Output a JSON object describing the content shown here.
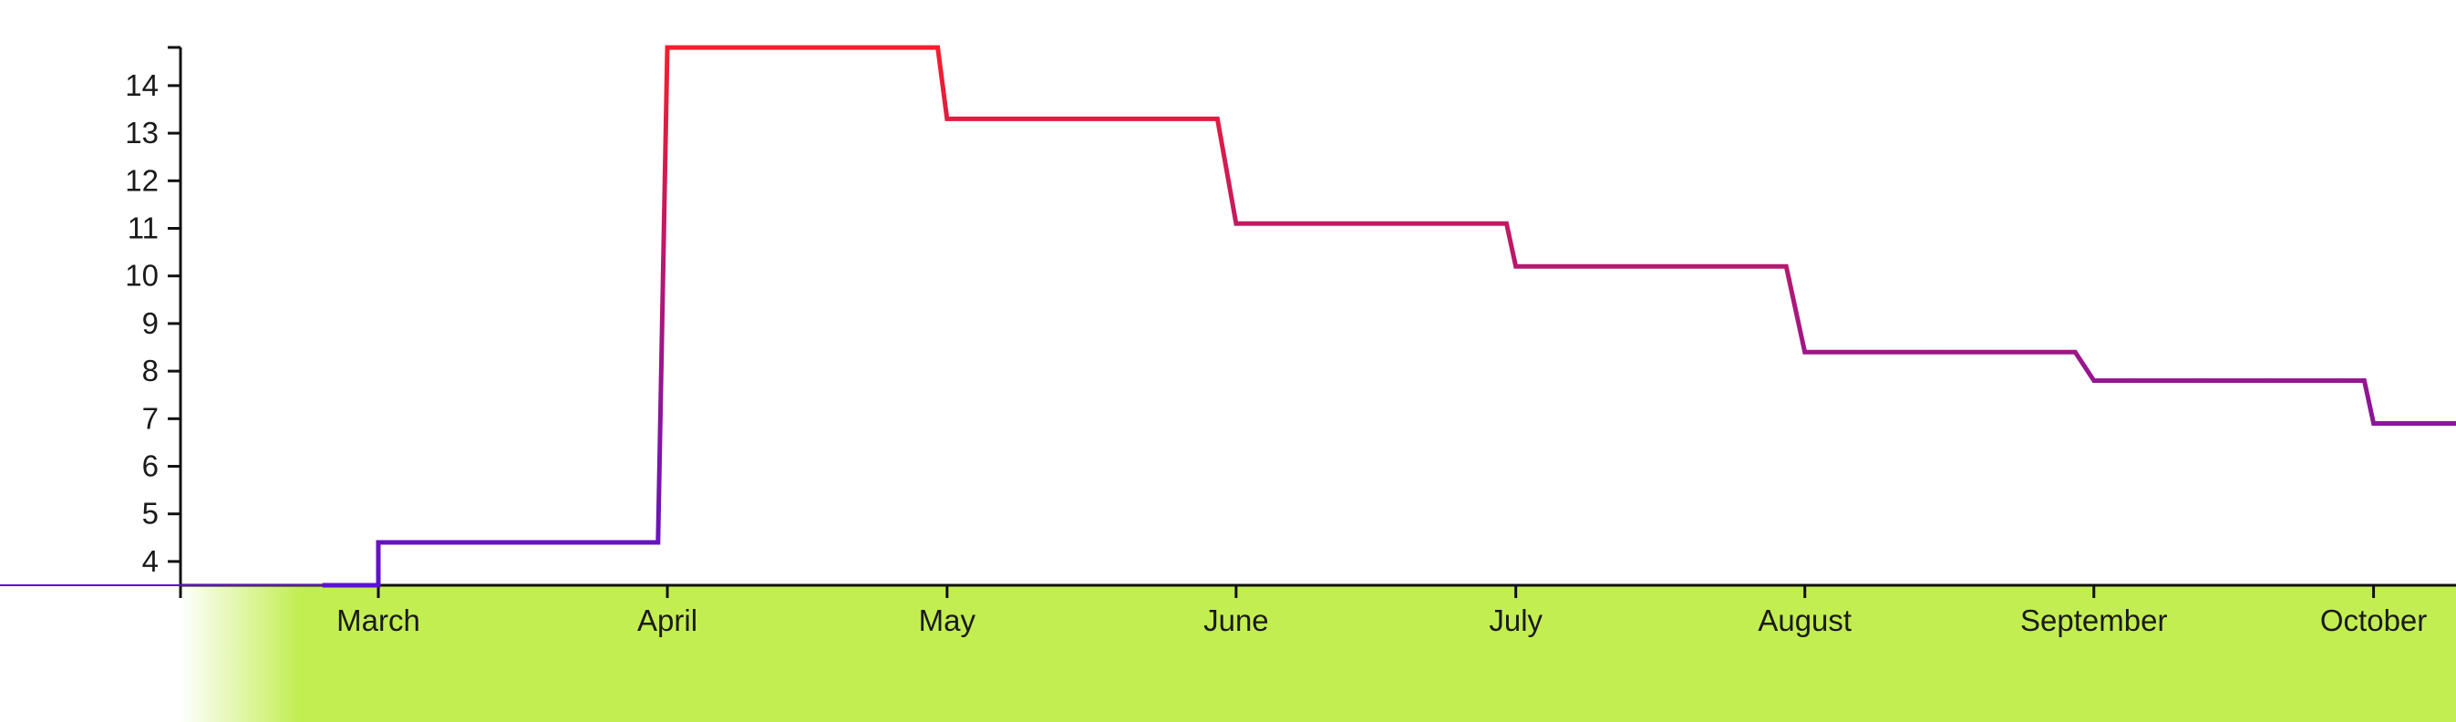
{
  "chart_data": {
    "type": "line",
    "interpolation": "step",
    "title": "",
    "xlabel": "",
    "ylabel": "",
    "x_ticks": [
      "March",
      "April",
      "May",
      "June",
      "July",
      "August",
      "September",
      "October"
    ],
    "y_ticks": [
      4,
      5,
      6,
      7,
      8,
      9,
      10,
      11,
      12,
      13,
      14
    ],
    "ylim": [
      3.5,
      14.75
    ],
    "grid": false,
    "legend": "none",
    "series": [
      {
        "points": [
          {
            "x": "2023-02-23",
            "y": 3.5
          },
          {
            "x": "2023-03-01",
            "y": 3.5
          },
          {
            "x": "2023-03-01",
            "y": 4.4
          },
          {
            "x": "2023-03-31",
            "y": 4.4
          },
          {
            "x": "2023-04-01",
            "y": 14.8
          },
          {
            "x": "2023-04-30",
            "y": 14.8
          },
          {
            "x": "2023-05-01",
            "y": 13.3
          },
          {
            "x": "2023-05-30",
            "y": 13.3
          },
          {
            "x": "2023-06-01",
            "y": 11.1
          },
          {
            "x": "2023-06-30",
            "y": 11.1
          },
          {
            "x": "2023-07-01",
            "y": 10.2
          },
          {
            "x": "2023-07-30",
            "y": 10.2
          },
          {
            "x": "2023-08-01",
            "y": 8.4
          },
          {
            "x": "2023-08-30",
            "y": 8.4
          },
          {
            "x": "2023-09-01",
            "y": 7.8
          },
          {
            "x": "2023-09-30",
            "y": 7.8
          },
          {
            "x": "2023-10-01",
            "y": 6.9
          },
          {
            "x": "2023-10-10",
            "y": 6.9
          }
        ]
      }
    ],
    "colors": {
      "line_low": "#5a12cf",
      "line_high": "#f51e2c",
      "axis": "#111111",
      "band": "#c3ee52",
      "background": "#ffffff"
    }
  }
}
